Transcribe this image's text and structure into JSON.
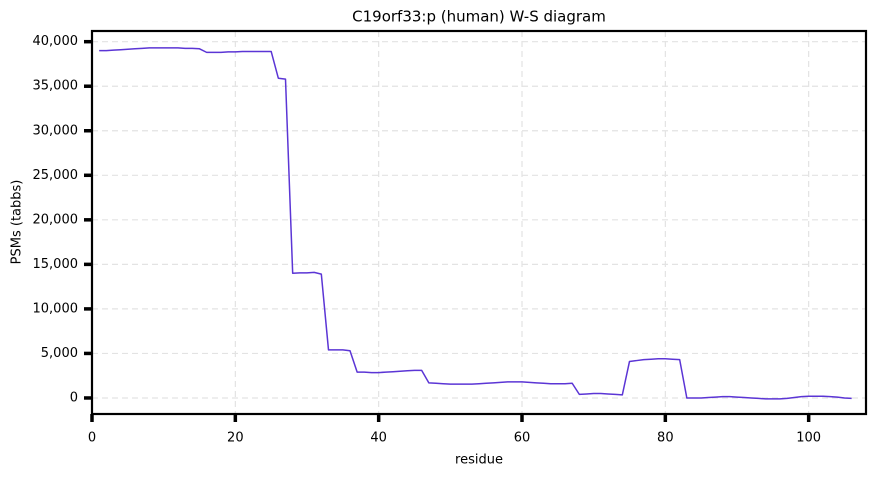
{
  "chart_data": {
    "type": "line",
    "title": "C19orf33:p (human) W-S diagram",
    "x_label": "residue",
    "y_label": "PSMs (tabbs)",
    "x": [
      1,
      2,
      3,
      4,
      5,
      6,
      7,
      8,
      9,
      10,
      11,
      12,
      13,
      14,
      15,
      16,
      17,
      18,
      19,
      20,
      21,
      22,
      23,
      24,
      25,
      26,
      27,
      28,
      29,
      30,
      31,
      32,
      33,
      34,
      35,
      36,
      37,
      38,
      39,
      40,
      41,
      42,
      43,
      44,
      45,
      46,
      47,
      48,
      49,
      50,
      51,
      52,
      53,
      54,
      55,
      56,
      57,
      58,
      59,
      60,
      61,
      62,
      63,
      64,
      65,
      66,
      67,
      68,
      69,
      70,
      71,
      72,
      73,
      74,
      75,
      76,
      77,
      78,
      79,
      80,
      81,
      82,
      83,
      84,
      85,
      86,
      87,
      88,
      89,
      90,
      91,
      92,
      93,
      94,
      95,
      96,
      97,
      98,
      99,
      100,
      101,
      102,
      103,
      104,
      105,
      106
    ],
    "series": [
      {
        "name": "C19orf33:p",
        "color": "#5b35d5",
        "values": [
          39000,
          39000,
          39050,
          39100,
          39150,
          39200,
          39250,
          39300,
          39300,
          39300,
          39300,
          39300,
          39250,
          39250,
          39200,
          38800,
          38800,
          38800,
          38850,
          38850,
          38900,
          38900,
          38900,
          38900,
          38900,
          35900,
          35800,
          14000,
          14050,
          14050,
          14100,
          13900,
          5400,
          5400,
          5400,
          5300,
          2900,
          2900,
          2850,
          2850,
          2900,
          2950,
          3000,
          3050,
          3100,
          3100,
          1700,
          1650,
          1600,
          1550,
          1550,
          1550,
          1550,
          1600,
          1650,
          1700,
          1750,
          1800,
          1800,
          1800,
          1750,
          1700,
          1650,
          1600,
          1600,
          1600,
          1650,
          400,
          450,
          500,
          500,
          450,
          400,
          350,
          4100,
          4200,
          4300,
          4350,
          4400,
          4400,
          4350,
          4300,
          0,
          0,
          0,
          50,
          100,
          150,
          150,
          100,
          50,
          0,
          -50,
          -100,
          -100,
          -100,
          -50,
          50,
          150,
          200,
          200,
          200,
          150,
          100,
          0,
          -50
        ]
      }
    ],
    "xlim": [
      0,
      108
    ],
    "ylim": [
      -1800,
      41200
    ],
    "xticks": [
      0,
      20,
      40,
      60,
      80,
      100
    ],
    "yticks": [
      0,
      {
        "value": 5000,
        "label": "5,000"
      },
      {
        "value": 10000,
        "label": "10,000"
      },
      {
        "value": 15000,
        "label": "15,000"
      },
      {
        "value": 20000,
        "label": "20,000"
      },
      {
        "value": 25000,
        "label": "25,000"
      },
      {
        "value": 30000,
        "label": "30,000"
      },
      {
        "value": 35000,
        "label": "35,000"
      },
      {
        "value": 40000,
        "label": "40,000"
      }
    ],
    "grid": true
  }
}
